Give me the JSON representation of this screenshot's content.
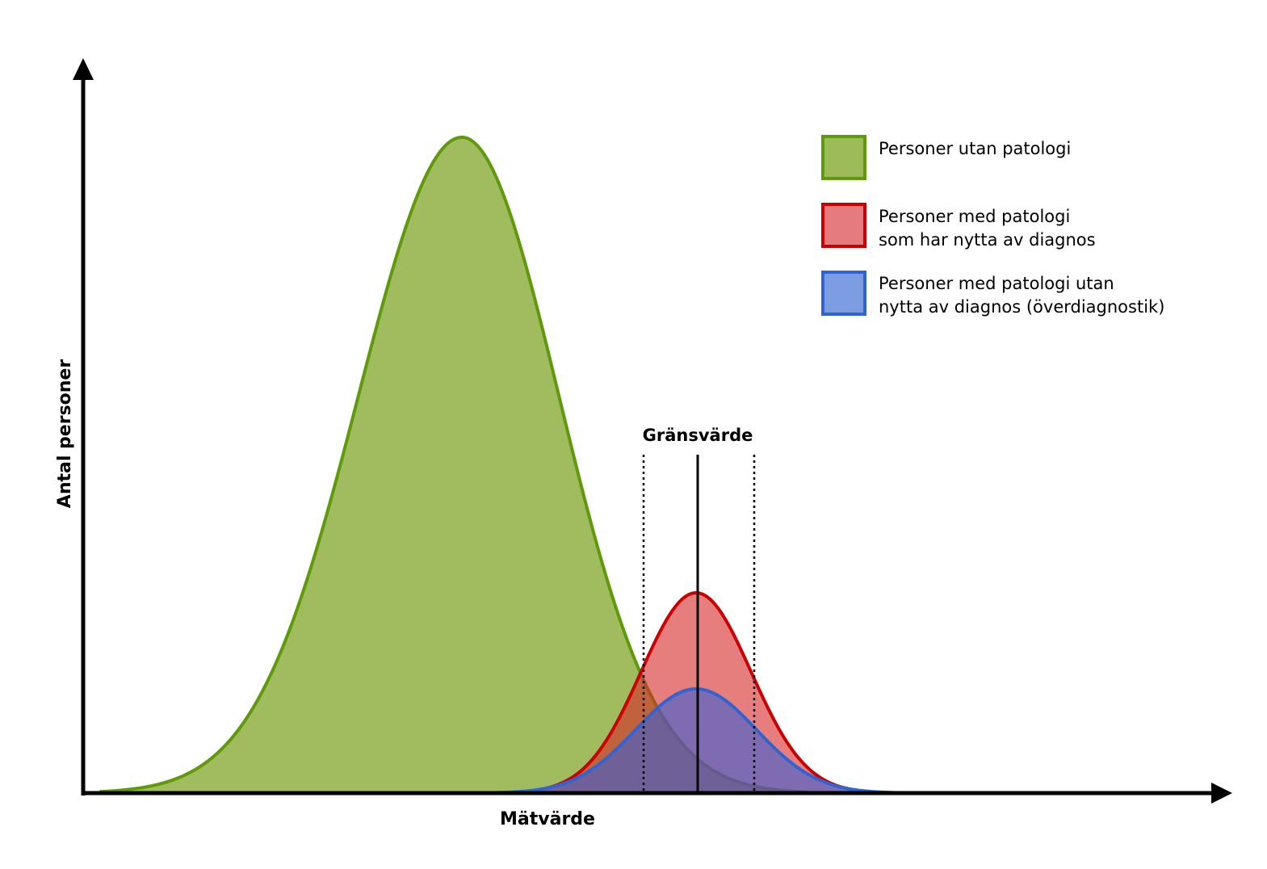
{
  "diagram": {
    "y_axis_label": "Antal personer",
    "x_axis_label": "Mätvärde",
    "threshold_label": "Gränsvärde",
    "legend": [
      {
        "id": "green",
        "line1": "Personer utan patologi",
        "line2": "",
        "fill": "#8fb042",
        "stroke": "#5f9a0a"
      },
      {
        "id": "red",
        "line1": "Personer med patologi",
        "line2": "som har nytta av diagnos",
        "fill": "#e06569",
        "stroke": "#cc0000"
      },
      {
        "id": "blue",
        "line1": "Personer med patologi utan",
        "line2": "nytta av diagnos (överdiagnostik)",
        "fill": "#6a8fde",
        "stroke": "#2f64d2"
      }
    ]
  }
}
